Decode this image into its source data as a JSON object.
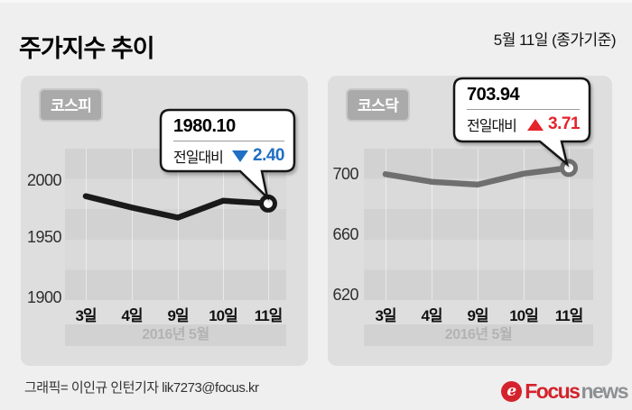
{
  "header": {
    "title": "주가지수 추이",
    "date_note": "5월 11일 (종가기준)"
  },
  "charts": [
    {
      "name": "코스피",
      "callout": {
        "value": "1980.10",
        "change_label": "전일대비",
        "direction": "down",
        "change": "2.40"
      },
      "y_ticks": [
        "2000",
        "1950",
        "1900"
      ],
      "x_ticks": [
        "3일",
        "4일",
        "9일",
        "10일",
        "11일"
      ],
      "month_label": "2016년 5월"
    },
    {
      "name": "코스닥",
      "callout": {
        "value": "703.94",
        "change_label": "전일대비",
        "direction": "up",
        "change": "3.71"
      },
      "y_ticks": [
        "700",
        "660",
        "620"
      ],
      "x_ticks": [
        "3일",
        "4일",
        "9일",
        "10일",
        "11일"
      ],
      "month_label": "2016년 5월"
    }
  ],
  "chart_data": [
    {
      "type": "line",
      "title": "코스피",
      "x": [
        "3일",
        "4일",
        "9일",
        "10일",
        "11일"
      ],
      "values": [
        1986.4,
        1976.7,
        1968.1,
        1982.5,
        1980.1
      ],
      "yticks": [
        2000,
        1950,
        1900
      ],
      "ylim": [
        1897,
        2027
      ],
      "xlabel": "2016년 5월",
      "ylabel": "",
      "grid": "horizontal-bands",
      "last_point": {
        "value": 1980.1,
        "change": -2.4
      },
      "line_color": "#1a1a1a"
    },
    {
      "type": "line",
      "title": "코스닥",
      "x": [
        "3일",
        "4일",
        "9일",
        "10일",
        "11일"
      ],
      "values": [
        699.8,
        694.8,
        692.9,
        700.2,
        703.94
      ],
      "yticks": [
        700,
        660,
        620
      ],
      "ylim": [
        617,
        717
      ],
      "xlabel": "2016년 5월",
      "ylabel": "",
      "grid": "horizontal-bands",
      "last_point": {
        "value": 703.94,
        "change": 3.71
      },
      "line_color": "#6f6f6f"
    }
  ],
  "footer": {
    "credit": "그래픽= 이인규 인턴기자 lik7273@focus.kr",
    "logo_mark": "focus-swirl-icon",
    "logo_text_primary": "Focus",
    "logo_text_secondary": "news"
  },
  "colors": {
    "up_red": "#e5232b",
    "down_blue": "#1f6fc2",
    "kospi_line": "#1a1a1a",
    "kosdaq_line": "#6f6f6f",
    "panel_bg": "#dedede",
    "page_bg": "#efefef",
    "logo_red": "#d4232c",
    "logo_gray": "#8e9194"
  }
}
